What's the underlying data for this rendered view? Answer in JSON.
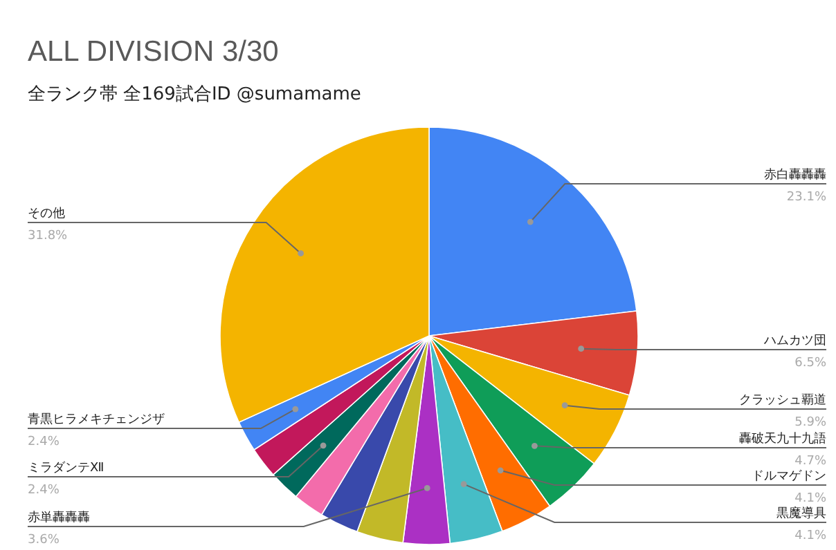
{
  "chart_data": {
    "type": "pie",
    "title": "ALL DIVISION 3/30",
    "subtitle": "全ランク帯 全169試合ID @sumamame",
    "categories": [
      "赤白轟轟轟",
      "ハムカツ団",
      "クラッシュ覇道",
      "轟破天九十九語",
      "ドルマゲドン",
      "黒魔導具",
      "赤単轟轟轟",
      null,
      null,
      null,
      "ミラダンテⅫ",
      null,
      "青黒ヒラメキチェンジザ",
      "その他"
    ],
    "values": [
      23.1,
      6.5,
      5.9,
      4.7,
      4.1,
      4.1,
      3.6,
      3.6,
      3.0,
      2.4,
      2.4,
      2.4,
      2.4,
      31.8
    ],
    "colors": [
      "#4285f4",
      "#db4437",
      "#f4b400",
      "#0f9d58",
      "#ff6d00",
      "#46bdc6",
      "#ab30c4",
      "#c2b928",
      "#3949ab",
      "#f36cab",
      "#00695c",
      "#c2185b",
      "#4285f4",
      "#f4b400"
    ],
    "value_labels": [
      "23.1%",
      "6.5%",
      "5.9%",
      "4.7%",
      "4.1%",
      "4.1%",
      "3.6%",
      null,
      null,
      null,
      "2.4%",
      null,
      "2.4%",
      "31.8%"
    ]
  }
}
